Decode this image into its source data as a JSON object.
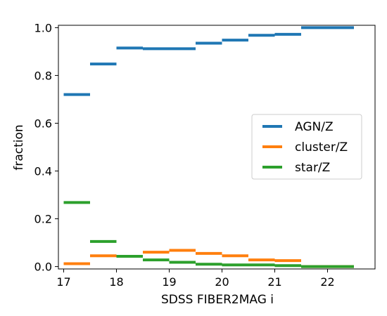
{
  "chart_data": {
    "type": "step",
    "xlabel": "SDSS FIBER2MAG i",
    "ylabel": "fraction",
    "xlim": [
      16.9,
      22.9
    ],
    "ylim": [
      -0.01,
      1.01
    ],
    "xticks": [
      17,
      18,
      19,
      20,
      21,
      22
    ],
    "xtick_labels": [
      "17",
      "18",
      "19",
      "20",
      "21",
      "22"
    ],
    "yticks": [
      0.0,
      0.2,
      0.4,
      0.6,
      0.8,
      1.0
    ],
    "ytick_labels": [
      "0.0",
      "0.2",
      "0.4",
      "0.6",
      "0.8",
      "1.0"
    ],
    "bin_edges": [
      17.0,
      17.5,
      18.0,
      18.5,
      19.0,
      19.5,
      20.0,
      20.5,
      21.0,
      21.5,
      22.0,
      22.5
    ],
    "grid": false,
    "legend_position": "center-right",
    "series": [
      {
        "name": "AGN/Z",
        "color": "#1f77b4",
        "values": [
          0.72,
          0.848,
          0.915,
          0.912,
          0.912,
          0.935,
          0.948,
          0.968,
          0.972,
          1.0,
          1.0
        ]
      },
      {
        "name": "cluster/Z",
        "color": "#ff7f0e",
        "values": [
          0.012,
          0.045,
          0.043,
          0.06,
          0.068,
          0.055,
          0.045,
          0.028,
          0.025,
          0.0,
          0.0
        ]
      },
      {
        "name": "star/Z",
        "color": "#2ca02c",
        "values": [
          0.268,
          0.105,
          0.043,
          0.028,
          0.018,
          0.01,
          0.007,
          0.007,
          0.004,
          0.0,
          0.0
        ]
      }
    ]
  }
}
